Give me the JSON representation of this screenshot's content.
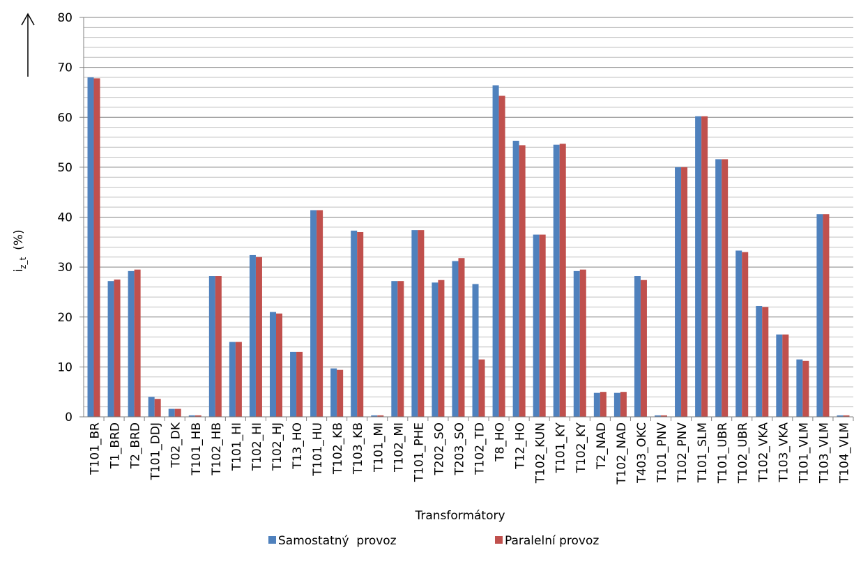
{
  "chart_data": {
    "type": "bar",
    "ylabel": {
      "main": "i",
      "sub": "z_t",
      "unit": "(%)"
    },
    "xlabel": "Transformátory",
    "categories": [
      "T101_BR",
      "T1_BRD",
      "T2_BRD",
      "T101_DDJ",
      "T02_DK",
      "T101_HB",
      "T102_HB",
      "T101_HI",
      "T102_HI",
      "T102_HJ",
      "T13_HO",
      "T101_HU",
      "T102_KB",
      "T103_KB",
      "T101_MI",
      "T102_MI",
      "T101_PHE",
      "T202_SO",
      "T203_SO",
      "T102_TD",
      "T8_HO",
      "T12_HO",
      "T102_KUN",
      "T101_KY",
      "T102_KY",
      "T2_NAD",
      "T102_NAD",
      "T403_OKC",
      "T101_PNV",
      "T102_PNV",
      "T101_SLM",
      "T101_UBR",
      "T102_UBR",
      "T102_VKA",
      "T103_VKA",
      "T101_VLM",
      "T103_VLM",
      "T104_VLM"
    ],
    "series": [
      {
        "name": "Samostatný  provoz",
        "color": "#4f81bd",
        "values": [
          68,
          27.2,
          29.2,
          4,
          1.6,
          0.3,
          28.2,
          15,
          32.4,
          21,
          13,
          41.4,
          9.7,
          37.3,
          0.3,
          27.2,
          37.4,
          26.9,
          31.2,
          26.6,
          66.4,
          55.3,
          36.5,
          54.5,
          29.2,
          4.8,
          4.8,
          28.2,
          0.3,
          50,
          60.2,
          51.6,
          33.3,
          22.2,
          16.5,
          11.5,
          40.6,
          0.3
        ]
      },
      {
        "name": "Paralelní provoz",
        "color": "#c0504d",
        "values": [
          67.8,
          27.5,
          29.5,
          3.6,
          1.6,
          0.3,
          28.2,
          15,
          32,
          20.7,
          13,
          41.4,
          9.4,
          37,
          0.3,
          27.2,
          37.4,
          27.4,
          31.8,
          11.5,
          64.3,
          54.4,
          36.5,
          54.7,
          29.5,
          5,
          5,
          27.4,
          0.3,
          50,
          60.2,
          51.6,
          33,
          22,
          16.5,
          11.2,
          40.6,
          0.3
        ]
      }
    ],
    "ylim": [
      0,
      80
    ],
    "yticks": [
      0,
      10,
      20,
      30,
      40,
      50,
      60,
      70,
      80
    ],
    "grid": true,
    "legend": "bottom"
  }
}
